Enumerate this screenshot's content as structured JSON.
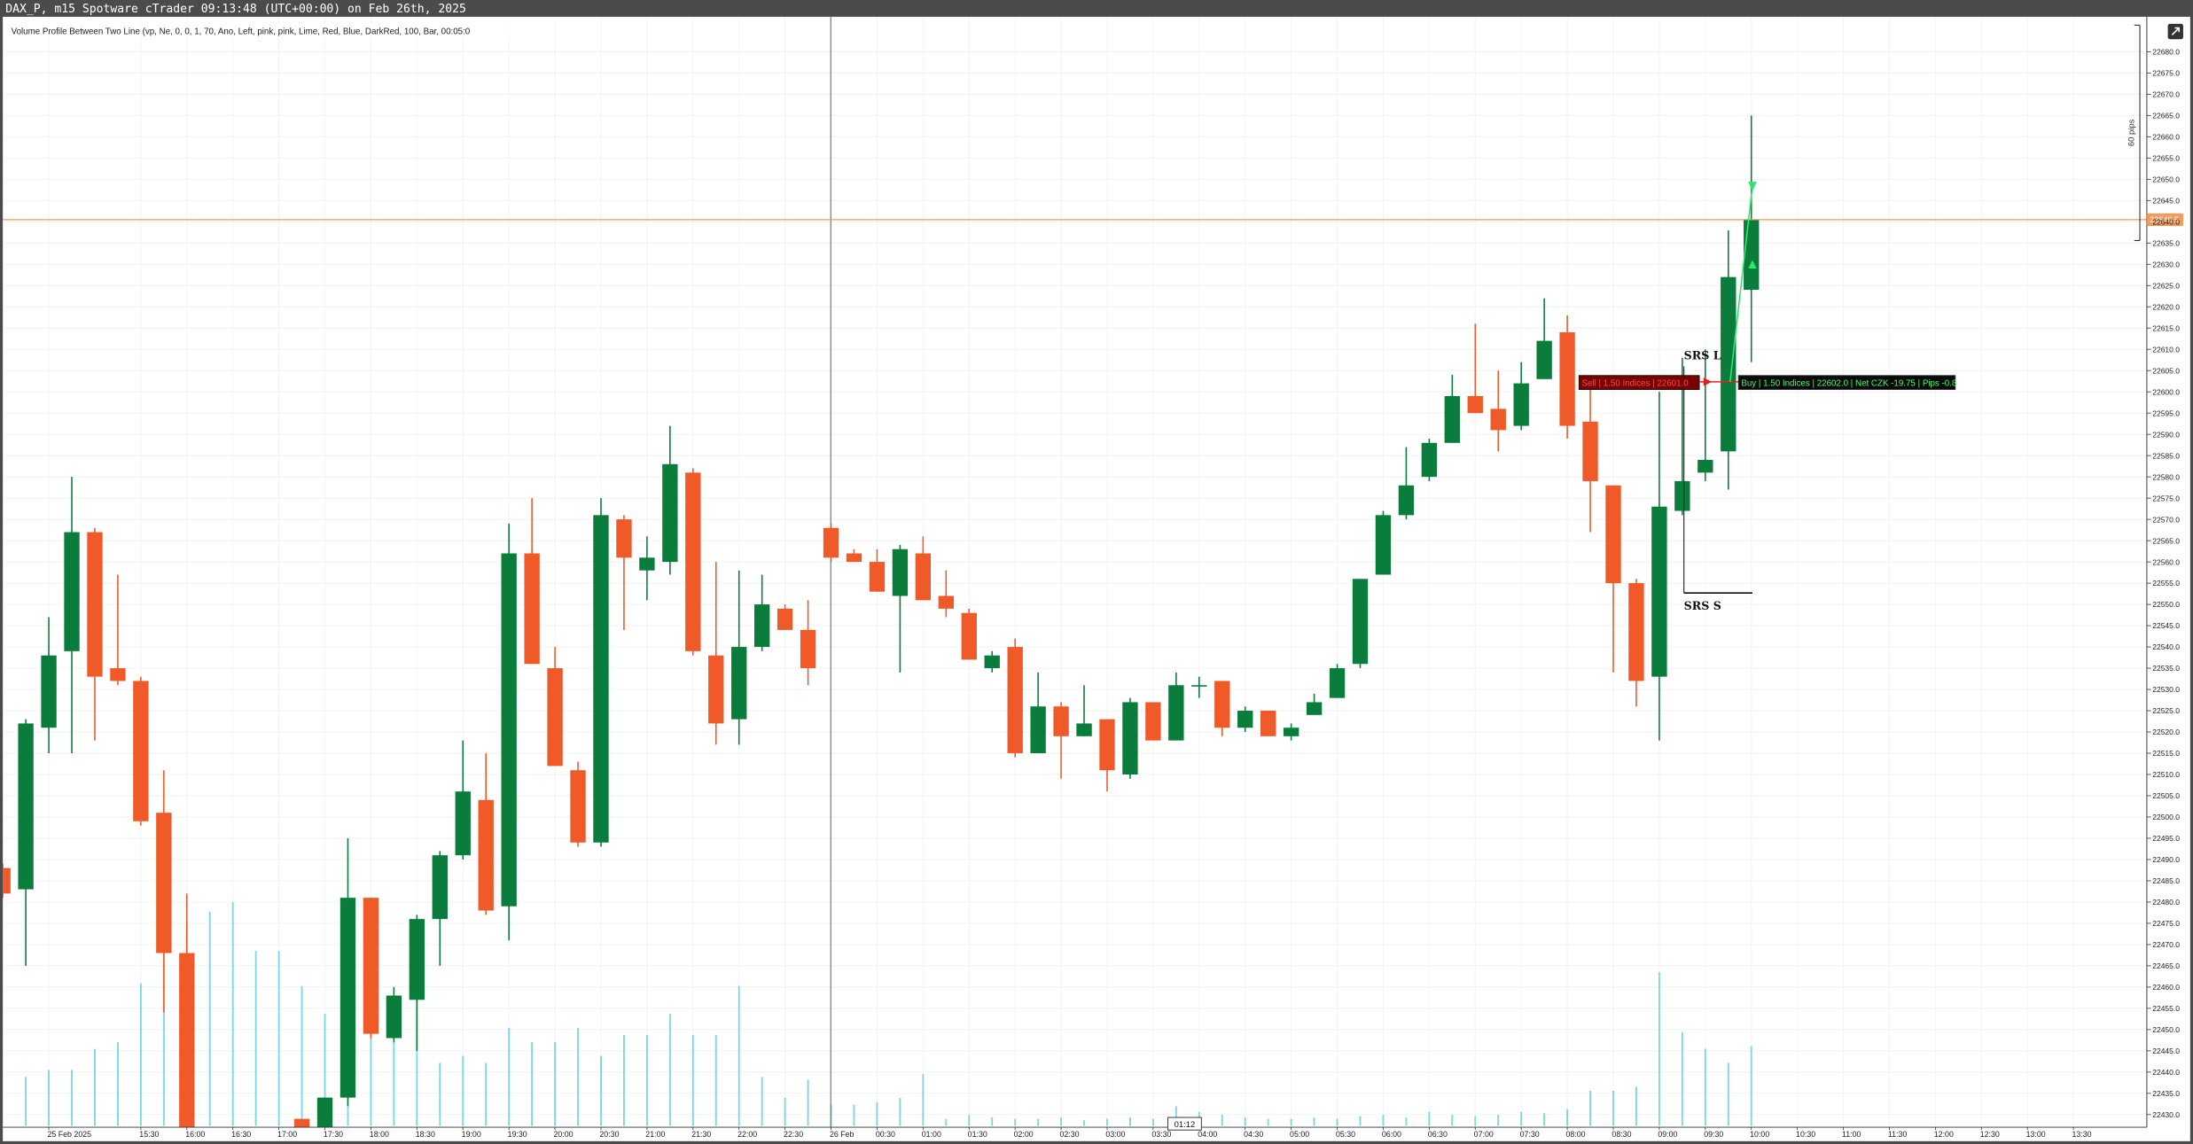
{
  "title_bar": "DAX_P, m15 Spotware cTrader 09:13:48 (UTC+00:00) on Feb 26th, 2025",
  "chart_data": {
    "type": "candlestick",
    "subtitle": "Volume Profile Between Two Line (vp, Ne, 0, 0, 1, 70, Ano, Left, pink, pink, Lime, Red, Blue, DarkRed, 100, Bar, 00:05:0",
    "categories": [
      null,
      null,
      "25 Feb 2025",
      null,
      null,
      null,
      "15:30",
      null,
      "16:00",
      null,
      "16:30",
      null,
      "17:00",
      null,
      "17:30",
      null,
      "18:00",
      null,
      "18:30",
      null,
      "19:00",
      null,
      "19:30",
      null,
      "20:00",
      null,
      "20:30",
      null,
      "21:00",
      null,
      "21:30",
      null,
      "22:00",
      null,
      "22:30",
      null,
      "26 Feb",
      null,
      "00:30",
      null,
      "01:00",
      null,
      "01:30",
      null,
      "02:00",
      null,
      "02:30",
      null,
      "03:00",
      null,
      "03:30",
      null,
      "04:00",
      null,
      "04:30",
      null,
      "05:00",
      null,
      "05:30",
      null,
      "06:00",
      null,
      "06:30",
      null,
      "07:00",
      null,
      "07:30",
      null,
      "08:00",
      null,
      "08:30",
      null,
      "09:00",
      null,
      "09:30",
      null,
      "10:00",
      null,
      "10:30",
      null,
      "11:00",
      null,
      "11:30",
      null,
      "12:00",
      null,
      "12:30",
      null,
      "13:00",
      null,
      "13:30"
    ],
    "open": [
      22488,
      22483,
      22521,
      22539,
      22567,
      22535,
      22532,
      22501,
      22468,
      null,
      null,
      null,
      null,
      22429,
      22420,
      22434,
      22481,
      22448,
      22457,
      22476,
      22491,
      22504,
      22479,
      22562,
      22535,
      22511,
      22494,
      22570,
      22558,
      22560,
      22581,
      22538,
      22523,
      22540,
      22549,
      22544,
      22568,
      22562,
      22560,
      22552,
      22562,
      22552,
      22548,
      22535,
      22540,
      22515,
      22526,
      22519,
      22523,
      22510,
      22527,
      22518,
      22531,
      22532,
      22521,
      22525,
      22519,
      22524,
      22528,
      22536,
      22557,
      22571,
      22580,
      22588,
      22599,
      22596,
      22592,
      22603,
      22614,
      22593,
      22578,
      22555,
      22533,
      22572,
      22581,
      22586,
      22624,
      null,
      null,
      null,
      null,
      null,
      null,
      null,
      null,
      null,
      null,
      null,
      null,
      null,
      null
    ],
    "high": [
      22489,
      22523,
      22547,
      22580,
      22568,
      22557,
      22533,
      22511,
      22482,
      null,
      null,
      null,
      null,
      22429,
      22434,
      22495,
      22481,
      22460,
      22477,
      22492,
      22518,
      22515,
      22569,
      22575,
      22540,
      22513,
      22575,
      22571,
      22566,
      22592,
      22582,
      22560,
      22558,
      22557,
      22550,
      22551,
      22569,
      22563,
      22563,
      22564,
      22566,
      22558,
      22549,
      22539,
      22542,
      22534,
      22527,
      22531,
      22523,
      22528,
      22527,
      22534,
      22533,
      22532,
      22526,
      22525,
      22522,
      22529,
      22536,
      22556,
      22572,
      22587,
      22589,
      22604,
      22616,
      22605,
      22607,
      22622,
      22618,
      22603,
      22578,
      22556,
      22600,
      22608,
      22610,
      22638,
      22665,
      null,
      null,
      null,
      null,
      null,
      null,
      null,
      null,
      null,
      null,
      null,
      null,
      null,
      null
    ],
    "low": [
      22481,
      22465,
      22515,
      22515,
      22518,
      22531,
      22498,
      22454,
      22415,
      null,
      null,
      null,
      null,
      22418,
      22418,
      22432,
      22448,
      22447,
      22445,
      22465,
      22490,
      22477,
      22471,
      22536,
      22512,
      22493,
      22493,
      22544,
      22551,
      22557,
      22538,
      22517,
      22517,
      22539,
      22544,
      22531,
      22560,
      22560,
      22553,
      22534,
      22551,
      22547,
      22537,
      22534,
      22514,
      22515,
      22509,
      22519,
      22506,
      22509,
      22518,
      22518,
      22528,
      22519,
      22520,
      22519,
      22518,
      22524,
      22528,
      22535,
      22557,
      22570,
      22579,
      22588,
      22595,
      22586,
      22591,
      22603,
      22589,
      22567,
      22534,
      22526,
      22518,
      22571,
      22579,
      22577,
      22607,
      null,
      null,
      null,
      null,
      null,
      null,
      null,
      null,
      null,
      null,
      null,
      null,
      null,
      null
    ],
    "close": [
      22482,
      22522,
      22538,
      22567,
      22533,
      22532,
      22499,
      22468,
      22420,
      null,
      null,
      null,
      null,
      22420,
      22434,
      22481,
      22449,
      22458,
      22476,
      22491,
      22506,
      22478,
      22562,
      22536,
      22512,
      22494,
      22571,
      22561,
      22561,
      22583,
      22539,
      22522,
      22540,
      22550,
      22544,
      22535,
      22561,
      22560,
      22553,
      22563,
      22551,
      22549,
      22537,
      22538,
      22515,
      22526,
      22519,
      22522,
      22511,
      22527,
      22518,
      22531,
      22531,
      22521,
      22525,
      22519,
      22521,
      22527,
      22535,
      22556,
      22571,
      22578,
      22588,
      22599,
      22595,
      22591,
      22602,
      22612,
      22592,
      22579,
      22555,
      22532,
      22573,
      22579,
      22584,
      22627,
      22640.5,
      null,
      null,
      null,
      null,
      null,
      null,
      null,
      null,
      null,
      null,
      null,
      null,
      null,
      null
    ],
    "volume": [
      null,
      35,
      40,
      40,
      55,
      60,
      102,
      135,
      145,
      153,
      160,
      125,
      125,
      100,
      80,
      60,
      70,
      60,
      100,
      45,
      50,
      45,
      70,
      60,
      60,
      70,
      50,
      65,
      65,
      80,
      65,
      65,
      100,
      35,
      20,
      33,
      15,
      15,
      17,
      20,
      37,
      5,
      8,
      6,
      5,
      5,
      6,
      4,
      5,
      6,
      5,
      14,
      10,
      8,
      6,
      5,
      5,
      6,
      5,
      7,
      8,
      6,
      10,
      8,
      7,
      8,
      10,
      9,
      12,
      25,
      25,
      28,
      110,
      67,
      55,
      45,
      57,
      null,
      null,
      null,
      null,
      null,
      null,
      null,
      null,
      null,
      null,
      null,
      null,
      null,
      null
    ],
    "colors": {
      "up": "#0a7d3d",
      "down": "#f05a28",
      "volume": "#7fd6ea",
      "current_price": "#f39a5c"
    },
    "ylim": [
      22427,
      22687
    ],
    "yticks": [
      {
        "value": 22430,
        "label": "22430.0"
      },
      {
        "value": 22435,
        "label": "22435.0"
      },
      {
        "value": 22440,
        "label": "22440.0"
      },
      {
        "value": 22445,
        "label": "22445.0"
      },
      {
        "value": 22450,
        "label": "22450.0"
      },
      {
        "value": 22455,
        "label": "22455.0"
      },
      {
        "value": 22460,
        "label": "22460.0"
      },
      {
        "value": 22465,
        "label": "22465.0"
      },
      {
        "value": 22470,
        "label": "22470.0"
      },
      {
        "value": 22475,
        "label": "22475.0"
      },
      {
        "value": 22480,
        "label": "22480.0"
      },
      {
        "value": 22485,
        "label": "22485.0"
      },
      {
        "value": 22490,
        "label": "22490.0"
      },
      {
        "value": 22495,
        "label": "22495.0"
      },
      {
        "value": 22500,
        "label": "22500.0"
      },
      {
        "value": 22505,
        "label": "22505.0"
      },
      {
        "value": 22510,
        "label": "22510.0"
      },
      {
        "value": 22515,
        "label": "22515.0"
      },
      {
        "value": 22520,
        "label": "22520.0"
      },
      {
        "value": 22525,
        "label": "22525.0"
      },
      {
        "value": 22530,
        "label": "22530.0"
      },
      {
        "value": 22535,
        "label": "22535.0"
      },
      {
        "value": 22540,
        "label": "22540.0"
      },
      {
        "value": 22545,
        "label": "22545.0"
      },
      {
        "value": 22550,
        "label": "22550.0"
      },
      {
        "value": 22555,
        "label": "22555.0"
      },
      {
        "value": 22560,
        "label": "22560.0"
      },
      {
        "value": 22565,
        "label": "22565.0"
      },
      {
        "value": 22570,
        "label": "22570.0"
      },
      {
        "value": 22575,
        "label": "22575.0"
      },
      {
        "value": 22580,
        "label": "22580.0"
      },
      {
        "value": 22585,
        "label": "22585.0"
      },
      {
        "value": 22590,
        "label": "22590.0"
      },
      {
        "value": 22595,
        "label": "22595.0"
      },
      {
        "value": 22600,
        "label": "22600.0"
      },
      {
        "value": 22605,
        "label": "22605.0"
      },
      {
        "value": 22610,
        "label": "22610.0"
      },
      {
        "value": 22615,
        "label": "22615.0"
      },
      {
        "value": 22620,
        "label": "22620.0"
      },
      {
        "value": 22625,
        "label": "22625.0"
      },
      {
        "value": 22630,
        "label": "22630.0"
      },
      {
        "value": 22635,
        "label": "22635.0"
      },
      {
        "value": 22640,
        "label": "22640.0"
      },
      {
        "value": 22645,
        "label": "22645.0"
      },
      {
        "value": 22650,
        "label": "22650.0"
      },
      {
        "value": 22655,
        "label": "22655.0"
      },
      {
        "value": 22660,
        "label": "22660.0"
      },
      {
        "value": 22665,
        "label": "22665.0"
      },
      {
        "value": 22670,
        "label": "22670.0"
      },
      {
        "value": 22675,
        "label": "22675.0"
      },
      {
        "value": 22680,
        "label": "22680.0"
      }
    ],
    "grid": true,
    "current_price": 22640.5,
    "crosshair_time": "01:12",
    "annotations": {
      "srs_l": "SRS L",
      "srs_s": "SRS S",
      "pips": "60 pips",
      "sell_position": "Sell | 1.50 Indices | 22601.0",
      "buy_position": "Buy | 1.50 Indices | 22602.0 | Net CZK -19.75 | Pips -0.8"
    }
  }
}
